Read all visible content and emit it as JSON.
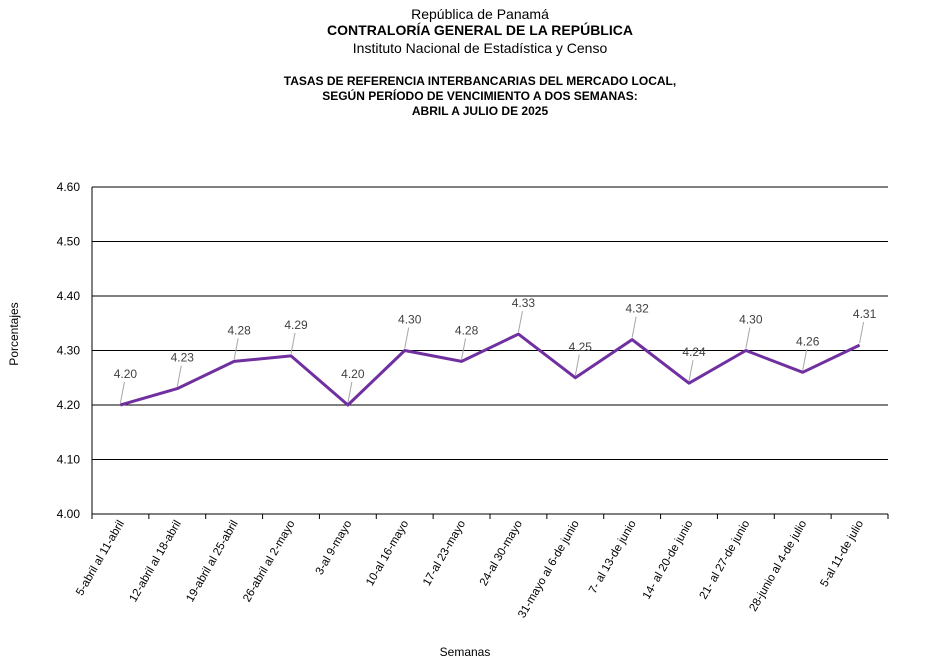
{
  "header": {
    "line1": "República de Panamá",
    "line2": "CONTRALORÍA GENERAL DE LA REPÚBLICA",
    "line3": "Instituto Nacional de Estadística y Censo"
  },
  "chart_data": {
    "type": "line",
    "title_lines": [
      "TASAS DE REFERENCIA INTERBANCARIAS DEL MERCADO LOCAL,",
      "SEGÚN PERÍODO DE VENCIMIENTO A DOS SEMANAS:",
      "ABRIL A JULIO DE 2025"
    ],
    "xlabel": "Semanas",
    "ylabel": "Porcentajes",
    "ylim": [
      4.0,
      4.6
    ],
    "yticks": [
      "4.00",
      "4.10",
      "4.20",
      "4.30",
      "4.40",
      "4.50",
      "4.60"
    ],
    "grid": true,
    "categories": [
      "5-abril al 11-abril",
      "12-abril al 18-abril",
      "19-abril al 25-abril",
      "26-abril al 2-mayo",
      "3-al 9-mayo",
      "10-al 16-mayo",
      "17-al 23-mayo",
      "24-al 30-mayo",
      "31-mayo al 6-de junio",
      "7- al 13-de junio",
      "14- al 20-de junio",
      "21- al 27-de junio",
      "28-junio al 4-de julio",
      "5-al 11-de julio"
    ],
    "values": [
      4.2,
      4.23,
      4.28,
      4.29,
      4.2,
      4.3,
      4.28,
      4.33,
      4.25,
      4.32,
      4.24,
      4.3,
      4.26,
      4.31
    ],
    "data_labels": [
      "4.20",
      "4.23",
      "4.28",
      "4.29",
      "4.20",
      "4.30",
      "4.28",
      "4.33",
      "4.25",
      "4.32",
      "4.24",
      "4.30",
      "4.26",
      "4.31"
    ],
    "line_color": "#7030a0"
  }
}
